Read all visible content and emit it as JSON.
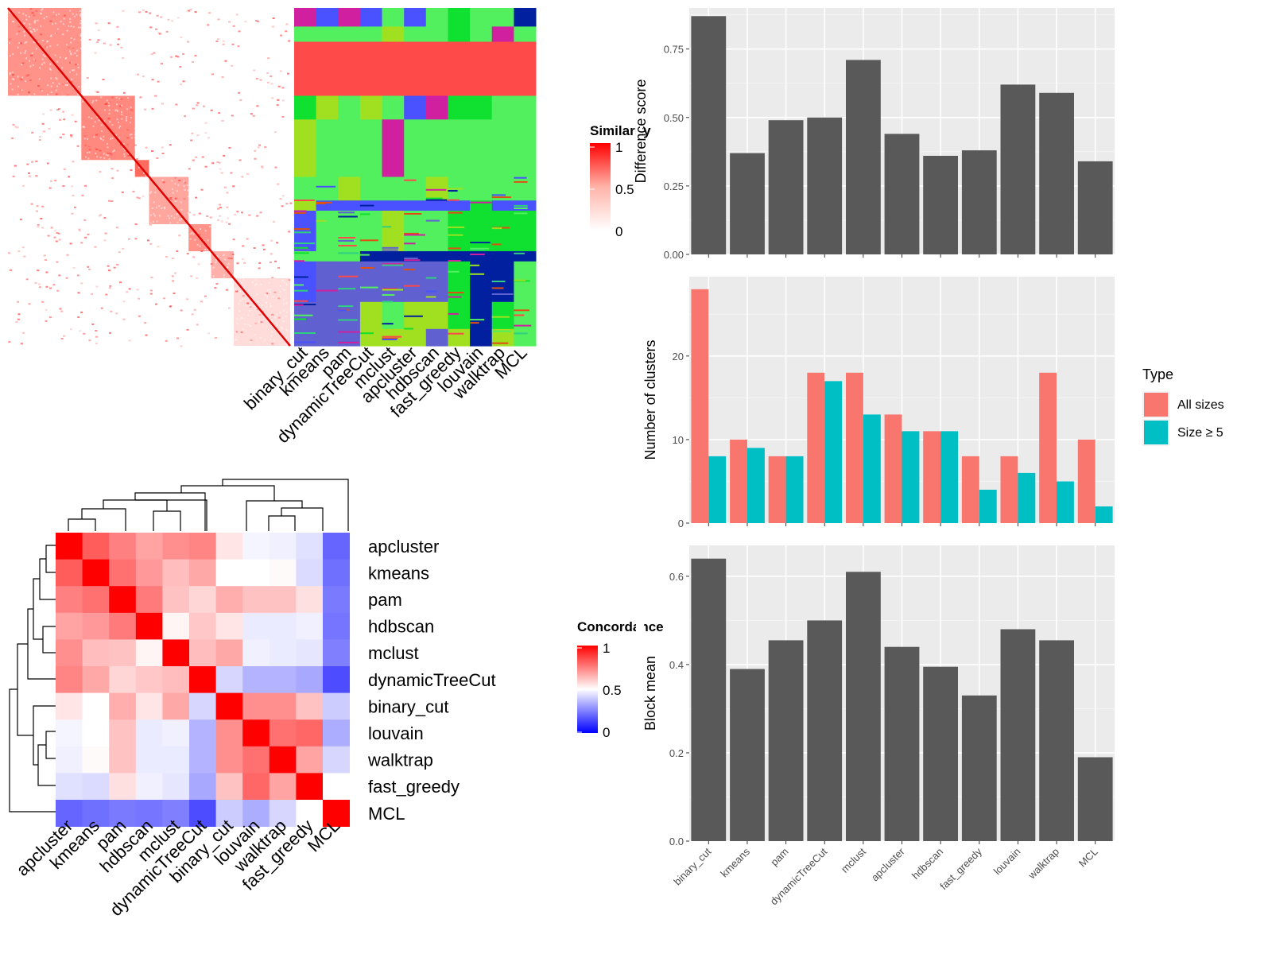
{
  "chart_data": [
    {
      "type": "heatmap",
      "panel": "similarity heatmap with clustering membership",
      "title": "",
      "legend": {
        "title": "Similarity",
        "ticks": [
          "1",
          "0.5",
          "0"
        ],
        "placement": "right"
      },
      "methods": [
        "binary_cut",
        "kmeans",
        "pam",
        "dynamicTreeCut",
        "mclust",
        "apcluster",
        "hdbscan",
        "fast_greedy",
        "louvain",
        "walktrap",
        "MCL"
      ],
      "colors": {
        "low": "#ffffff",
        "high": "#ff0000"
      }
    },
    {
      "type": "heatmap",
      "panel": "concordance between methods",
      "title": "",
      "legend": {
        "title": "Concordance",
        "ticks": [
          "1",
          "0.5",
          "0"
        ],
        "placement": "right"
      },
      "rows": [
        "apcluster",
        "kmeans",
        "pam",
        "hdbscan",
        "mclust",
        "dynamicTreeCut",
        "binary_cut",
        "louvain",
        "walktrap",
        "fast_greedy",
        "MCL"
      ],
      "columns": [
        "apcluster",
        "kmeans",
        "pam",
        "hdbscan",
        "mclust",
        "dynamicTreeCut",
        "binary_cut",
        "louvain",
        "walktrap",
        "fast_greedy",
        "MCL"
      ],
      "values": [
        [
          1.0,
          0.82,
          0.75,
          0.68,
          0.72,
          0.74,
          0.55,
          0.48,
          0.47,
          0.44,
          0.2
        ],
        [
          0.82,
          1.0,
          0.78,
          0.7,
          0.63,
          0.67,
          0.5,
          0.5,
          0.51,
          0.43,
          0.22
        ],
        [
          0.75,
          0.78,
          1.0,
          0.76,
          0.62,
          0.58,
          0.66,
          0.62,
          0.62,
          0.56,
          0.24
        ],
        [
          0.68,
          0.7,
          0.76,
          1.0,
          0.52,
          0.61,
          0.55,
          0.46,
          0.46,
          0.47,
          0.23
        ],
        [
          0.72,
          0.63,
          0.62,
          0.52,
          1.0,
          0.63,
          0.67,
          0.47,
          0.46,
          0.45,
          0.25
        ],
        [
          0.74,
          0.67,
          0.58,
          0.61,
          0.63,
          1.0,
          0.42,
          0.35,
          0.35,
          0.33,
          0.15
        ],
        [
          0.55,
          0.5,
          0.66,
          0.55,
          0.67,
          0.42,
          1.0,
          0.72,
          0.72,
          0.62,
          0.4
        ],
        [
          0.48,
          0.5,
          0.62,
          0.46,
          0.47,
          0.35,
          0.72,
          1.0,
          0.78,
          0.8,
          0.34
        ],
        [
          0.47,
          0.51,
          0.62,
          0.46,
          0.46,
          0.35,
          0.72,
          0.78,
          1.0,
          0.68,
          0.42
        ],
        [
          0.44,
          0.43,
          0.56,
          0.47,
          0.45,
          0.33,
          0.62,
          0.8,
          0.68,
          1.0,
          0.5
        ],
        [
          0.2,
          0.22,
          0.24,
          0.23,
          0.25,
          0.15,
          0.4,
          0.34,
          0.42,
          0.5,
          1.0
        ]
      ],
      "colors": {
        "low": "#0000ff",
        "mid": "#ffffff",
        "high": "#ff0000"
      }
    },
    {
      "type": "bar",
      "title": "",
      "xlabel": "",
      "ylabel": "Difference score",
      "ylim": [
        0,
        0.9
      ],
      "yticks": [
        0,
        0.25,
        0.5,
        0.75
      ],
      "ytick_labels": [
        "0.00",
        "0.25",
        "0.50",
        "0.75"
      ],
      "categories": [
        "binary_cut",
        "kmeans",
        "pam",
        "dynamicTreeCut",
        "mclust",
        "apcluster",
        "hdbscan",
        "fast_greedy",
        "louvain",
        "walktrap",
        "MCL"
      ],
      "values": [
        0.87,
        0.37,
        0.49,
        0.5,
        0.71,
        0.44,
        0.36,
        0.38,
        0.62,
        0.59,
        0.34
      ],
      "bar_color": "#595959"
    },
    {
      "type": "bar",
      "title": "",
      "xlabel": "",
      "ylabel": "Number of clusters",
      "ylim": [
        0,
        29.5
      ],
      "yticks": [
        0,
        10,
        20
      ],
      "ytick_labels": [
        "0",
        "10",
        "20"
      ],
      "categories": [
        "binary_cut",
        "kmeans",
        "pam",
        "dynamicTreeCut",
        "mclust",
        "apcluster",
        "hdbscan",
        "fast_greedy",
        "louvain",
        "walktrap",
        "MCL"
      ],
      "series": [
        {
          "name": "All sizes",
          "values": [
            28,
            10,
            8,
            18,
            18,
            13,
            11,
            8,
            8,
            18,
            10
          ],
          "color": "#f8766d"
        },
        {
          "name": "Size ≥ 5",
          "values": [
            8,
            9,
            8,
            17,
            13,
            11,
            11,
            4,
            6,
            5,
            2
          ],
          "color": "#00bfc4"
        }
      ],
      "legend": {
        "title": "Type",
        "placement": "right"
      }
    },
    {
      "type": "bar",
      "title": "",
      "xlabel": "",
      "ylabel": "Block mean",
      "ylim": [
        0,
        0.67
      ],
      "yticks": [
        0,
        0.2,
        0.4,
        0.6
      ],
      "ytick_labels": [
        "0.0",
        "0.2",
        "0.4",
        "0.6"
      ],
      "categories": [
        "binary_cut",
        "kmeans",
        "pam",
        "dynamicTreeCut",
        "mclust",
        "apcluster",
        "hdbscan",
        "fast_greedy",
        "louvain",
        "walktrap",
        "MCL"
      ],
      "values": [
        0.64,
        0.39,
        0.455,
        0.5,
        0.61,
        0.44,
        0.395,
        0.33,
        0.48,
        0.455,
        0.19
      ],
      "bar_color": "#595959"
    }
  ]
}
